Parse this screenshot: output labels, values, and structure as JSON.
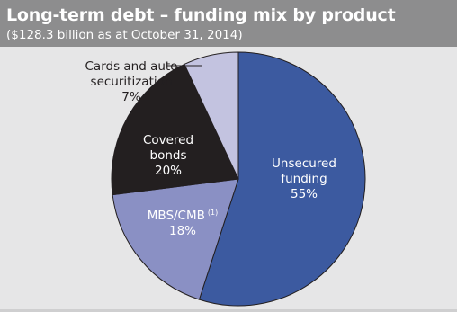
{
  "header": {
    "title": "Long-term debt – funding mix by product",
    "subtitle": "($128.3 billion as at October 31, 2014)"
  },
  "chart_data": {
    "type": "pie",
    "title": "Long-term debt – funding mix by product",
    "subtitle": "($128.3 billion as at October 31, 2014)",
    "slices": [
      {
        "name_lines": [
          "Unsecured",
          "funding"
        ],
        "percent_label": "55%",
        "value": 55,
        "color": "#3c5aa0",
        "text_color": "#ffffff"
      },
      {
        "name_lines": [
          "MBS/CMB"
        ],
        "footnote": "(1)",
        "percent_label": "18%",
        "value": 18,
        "color": "#8a90c4",
        "text_color": "#ffffff"
      },
      {
        "name_lines": [
          "Covered",
          "bonds"
        ],
        "percent_label": "20%",
        "value": 20,
        "color": "#231f20",
        "text_color": "#ffffff"
      },
      {
        "name_lines": [
          "Cards and auto",
          "securitization"
        ],
        "percent_label": "7%",
        "value": 7,
        "color": "#c3c3e0",
        "text_color": "#231f20"
      }
    ],
    "colors": {
      "background": "#e6e6e7",
      "header": "#8d8d8e",
      "slice_edge": "#231f20"
    }
  }
}
